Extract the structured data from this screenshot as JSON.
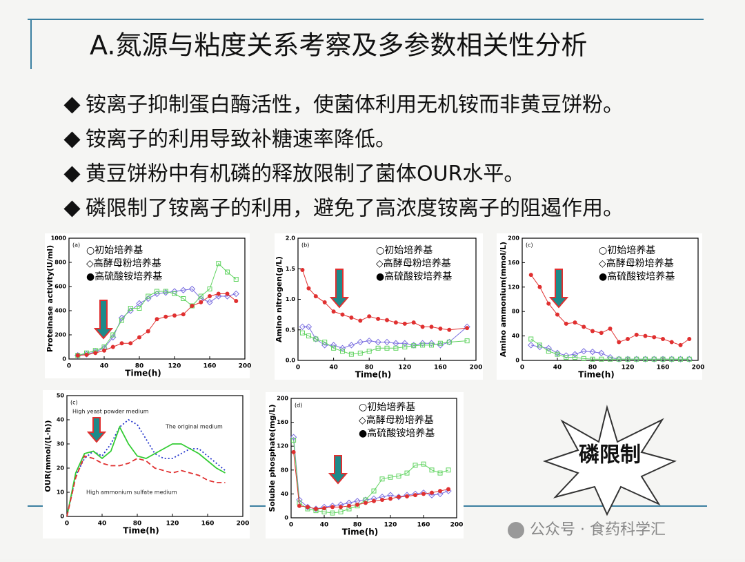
{
  "title": "A.氮源与粘度关系考察及多参数相关性分析",
  "bullets": [
    "铵离子抑制蛋白酶活性，使菌体利用无机铵而非黄豆饼粉。",
    "铵离子的利用导致补糖速率降低。",
    "黄豆饼粉中有机磷的释放限制了菌体OUR水平。",
    "磷限制了铵离子的利用，避免了高浓度铵离子的阻遏作用。"
  ],
  "badge": "磷限制",
  "watermark": "公众号 · 食药科学汇",
  "chart_data": [
    {
      "type": "line",
      "label": "(a)",
      "ylabel": "Proteinase activity(U/ml)",
      "xlabel": "Time(h)",
      "xlim": [
        0,
        200
      ],
      "xticks": [
        0,
        40,
        80,
        120,
        160,
        200
      ],
      "ylim": [
        0,
        1000
      ],
      "yticks": [
        0,
        200,
        400,
        600,
        800,
        1000
      ],
      "legend": true,
      "x": [
        10,
        20,
        30,
        40,
        50,
        60,
        70,
        80,
        90,
        100,
        110,
        120,
        130,
        140,
        150,
        160,
        170,
        180,
        190
      ],
      "series": [
        {
          "name": "○初始培养基",
          "color": "#7b6fe0",
          "marker": "diamond",
          "values": [
            30,
            40,
            60,
            90,
            180,
            340,
            400,
            460,
            500,
            540,
            550,
            560,
            570,
            580,
            500,
            470,
            520,
            520,
            540
          ]
        },
        {
          "name": "◇高酵母粉培养基",
          "color": "#5fd35f",
          "marker": "square",
          "values": [
            30,
            50,
            70,
            100,
            200,
            320,
            420,
            420,
            520,
            560,
            560,
            540,
            500,
            440,
            520,
            580,
            790,
            720,
            660
          ]
        },
        {
          "name": "●高硫酸铵培养基",
          "color": "#e03030",
          "marker": "circle",
          "values": [
            30,
            35,
            50,
            70,
            100,
            130,
            130,
            180,
            230,
            330,
            350,
            360,
            370,
            440,
            470,
            520,
            540,
            540,
            480
          ]
        }
      ]
    },
    {
      "type": "line",
      "label": "(b)",
      "ylabel": "Amino nitrogen(g/L)",
      "xlabel": "Time(h)",
      "xlim": [
        0,
        200
      ],
      "xticks": [
        0,
        40,
        80,
        120,
        160,
        200
      ],
      "ylim": [
        0,
        2
      ],
      "yticks": [
        {
          "value": 0,
          "label": "0.0"
        },
        0.5,
        {
          "value": 1,
          "label": "1.0"
        },
        1.5,
        {
          "value": 2,
          "label": "2.0"
        }
      ],
      "legend": true,
      "x": [
        5,
        12,
        20,
        30,
        40,
        50,
        60,
        70,
        80,
        90,
        100,
        110,
        120,
        130,
        140,
        150,
        160,
        170,
        190
      ],
      "series": [
        {
          "name": "○初始培养基",
          "color": "#7b6fe0",
          "marker": "diamond",
          "values": [
            0.55,
            0.55,
            0.35,
            0.25,
            0.25,
            0.2,
            0.25,
            0.3,
            0.32,
            0.3,
            0.3,
            0.28,
            0.28,
            0.25,
            0.28,
            0.28,
            0.25,
            0.3,
            0.55
          ]
        },
        {
          "name": "◇高酵母粉培养基",
          "color": "#5fd35f",
          "marker": "square",
          "values": [
            0.45,
            0.4,
            0.35,
            0.3,
            0.2,
            0.15,
            0.1,
            0.12,
            0.15,
            0.2,
            0.2,
            0.2,
            0.22,
            0.24,
            0.25,
            0.25,
            0.28,
            0.3,
            0.32
          ]
        },
        {
          "name": "●高硫酸铵培养基",
          "color": "#e03030",
          "marker": "circle",
          "values": [
            1.48,
            1.18,
            1.05,
            0.95,
            0.8,
            0.75,
            0.7,
            0.65,
            0.72,
            0.68,
            0.66,
            0.62,
            0.6,
            0.62,
            0.55,
            0.55,
            0.52,
            0.5,
            0.53
          ]
        }
      ]
    },
    {
      "type": "line",
      "label": "(c)",
      "ylabel": "Amino ammonium(mmol/L)",
      "xlabel": "Time(h)",
      "xlim": [
        0,
        200
      ],
      "xticks": [
        0,
        40,
        80,
        120,
        160,
        200
      ],
      "ylim": [
        0,
        200
      ],
      "yticks": [
        0,
        40,
        80,
        120,
        160,
        200
      ],
      "legend": true,
      "x": [
        10,
        20,
        30,
        40,
        50,
        60,
        70,
        80,
        90,
        100,
        110,
        120,
        130,
        140,
        150,
        160,
        170,
        180,
        190
      ],
      "series": [
        {
          "name": "○初始培养基",
          "color": "#7b6fe0",
          "marker": "diamond",
          "values": [
            25,
            22,
            20,
            12,
            8,
            10,
            15,
            14,
            12,
            5,
            2,
            2,
            2,
            2,
            2,
            2,
            2,
            2,
            2
          ]
        },
        {
          "name": "◇高酵母粉培养基",
          "color": "#5fd35f",
          "marker": "square",
          "values": [
            35,
            25,
            15,
            10,
            5,
            5,
            3,
            2,
            2,
            2,
            2,
            2,
            2,
            2,
            2,
            2,
            2,
            2,
            2
          ]
        },
        {
          "name": "●高硫酸铵培养基",
          "color": "#e03030",
          "marker": "circle",
          "values": [
            140,
            120,
            93,
            75,
            60,
            62,
            55,
            48,
            45,
            52,
            30,
            35,
            42,
            40,
            38,
            35,
            30,
            25,
            35
          ]
        }
      ]
    },
    {
      "type": "line",
      "label": "(c)",
      "ylabel": "OUR(mmol/(L·h))",
      "xlabel": "Time(h)",
      "xlim": [
        0,
        200
      ],
      "xticks": [
        0,
        40,
        80,
        120,
        160,
        200
      ],
      "ylim": [
        0,
        50
      ],
      "yticks": [
        0,
        10,
        20,
        30,
        40,
        50
      ],
      "legend": false,
      "x": [
        0,
        10,
        20,
        30,
        40,
        50,
        60,
        70,
        80,
        90,
        100,
        110,
        120,
        130,
        140,
        150,
        160,
        170,
        180
      ],
      "series": [
        {
          "name": "High yeast powder medium",
          "color": "#2233cc",
          "style": "dotted",
          "values": [
            0,
            17,
            24,
            27,
            25,
            30,
            37,
            40,
            38,
            32,
            26,
            24,
            24,
            26,
            28,
            28,
            25,
            22,
            19
          ]
        },
        {
          "name": "The original medium",
          "color": "#33cc33",
          "style": "solid",
          "values": [
            0,
            18,
            26,
            27,
            24,
            27,
            37,
            30,
            25,
            24,
            26,
            28,
            30,
            30,
            28,
            26,
            23,
            20,
            18
          ]
        },
        {
          "name": "High ammonium sulfate medium",
          "color": "#e03030",
          "style": "dashed",
          "values": [
            0,
            16,
            25,
            24,
            22,
            21,
            21,
            22,
            24,
            23,
            20,
            19,
            18,
            19,
            18,
            17,
            15,
            14,
            14
          ]
        }
      ]
    },
    {
      "type": "line",
      "label": "(d)",
      "ylabel": "Soluble phosphate(mg/L)",
      "xlabel": "Time(h)",
      "xlim": [
        0,
        200
      ],
      "xticks": [
        0,
        40,
        80,
        120,
        160,
        200
      ],
      "ylim": [
        0,
        200
      ],
      "yticks": [
        0,
        40,
        80,
        120,
        160,
        200
      ],
      "legend": true,
      "x": [
        3,
        10,
        20,
        30,
        40,
        50,
        60,
        70,
        80,
        90,
        100,
        110,
        120,
        130,
        140,
        150,
        160,
        170,
        180,
        190
      ],
      "series": [
        {
          "name": "○初始培养基",
          "color": "#7b6fe0",
          "marker": "diamond",
          "values": [
            135,
            30,
            18,
            15,
            18,
            20,
            22,
            25,
            28,
            30,
            32,
            35,
            38,
            35,
            38,
            40,
            42,
            38,
            40,
            45
          ]
        },
        {
          "name": "◇高酵母粉培养基",
          "color": "#5fd35f",
          "marker": "square",
          "values": [
            130,
            25,
            15,
            12,
            10,
            8,
            10,
            15,
            20,
            30,
            45,
            65,
            68,
            70,
            75,
            88,
            90,
            80,
            75,
            80
          ]
        },
        {
          "name": "●高硫酸铵培养基",
          "color": "#e03030",
          "marker": "circle",
          "values": [
            110,
            20,
            18,
            15,
            16,
            18,
            18,
            20,
            22,
            25,
            28,
            30,
            32,
            35,
            36,
            38,
            40,
            42,
            45,
            48
          ]
        }
      ]
    }
  ]
}
